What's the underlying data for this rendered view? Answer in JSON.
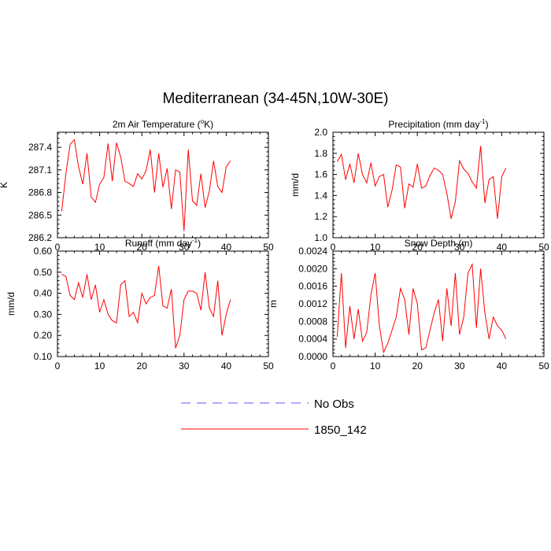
{
  "figure": {
    "title": "Mediterranean (34-45N,10W-30E)"
  },
  "chart_data": [
    {
      "type": "line",
      "title": "2m Air Temperature (°K)",
      "title_parts": {
        "pre": "2m Air Temperature (",
        "sup": "o",
        "post": "K)"
      },
      "xlabel": "",
      "ylabel": "K",
      "xlim": [
        0,
        50
      ],
      "ylim": [
        286.2,
        287.6
      ],
      "xticks": [
        0,
        10,
        20,
        30,
        40,
        50
      ],
      "yticks": [
        286.2,
        286.5,
        286.8,
        287.1,
        287.4
      ],
      "ytick_labels": [
        "286.2",
        "286.5",
        "286.8",
        "287.1",
        "287.4"
      ],
      "series": [
        {
          "name": "1850_142",
          "color": "#ff0000",
          "x": [
            1,
            2,
            3,
            4,
            5,
            6,
            7,
            8,
            9,
            10,
            11,
            12,
            13,
            14,
            15,
            16,
            17,
            18,
            19,
            20,
            21,
            22,
            23,
            24,
            25,
            26,
            27,
            28,
            29,
            30,
            31,
            32,
            33,
            34,
            35,
            36,
            37,
            38,
            39,
            40,
            41
          ],
          "values": [
            286.55,
            287.05,
            287.44,
            287.5,
            287.14,
            286.91,
            287.32,
            286.74,
            286.67,
            286.91,
            287,
            287.45,
            286.95,
            287.46,
            287.27,
            286.95,
            286.92,
            286.88,
            287.05,
            286.98,
            287.09,
            287.37,
            286.8,
            287.32,
            286.87,
            287.12,
            286.58,
            287.1,
            287.07,
            286.29,
            287.37,
            286.69,
            286.63,
            287.05,
            286.6,
            286.82,
            287.22,
            286.88,
            286.8,
            287.14,
            287.22
          ]
        }
      ]
    },
    {
      "type": "line",
      "title": "Precipitation (mm day⁻¹)",
      "title_parts": {
        "pre": "Precipitation (mm day",
        "sup": "-1",
        "post": ")"
      },
      "xlabel": "",
      "ylabel": "mm/d",
      "xlim": [
        0,
        50
      ],
      "ylim": [
        1.0,
        2.0
      ],
      "xticks": [
        0,
        10,
        20,
        30,
        40,
        50
      ],
      "yticks": [
        1.0,
        1.2,
        1.4,
        1.6,
        1.8,
        2.0
      ],
      "ytick_labels": [
        "1.0",
        "1.2",
        "1.4",
        "1.6",
        "1.8",
        "2.0"
      ],
      "series": [
        {
          "name": "1850_142",
          "color": "#ff0000",
          "x": [
            1,
            2,
            3,
            4,
            5,
            6,
            7,
            8,
            9,
            10,
            11,
            12,
            13,
            14,
            15,
            16,
            17,
            18,
            19,
            20,
            21,
            22,
            23,
            24,
            25,
            26,
            27,
            28,
            29,
            30,
            31,
            32,
            33,
            34,
            35,
            36,
            37,
            38,
            39,
            40,
            41
          ],
          "values": [
            1.72,
            1.79,
            1.55,
            1.7,
            1.52,
            1.8,
            1.6,
            1.52,
            1.71,
            1.49,
            1.58,
            1.6,
            1.29,
            1.45,
            1.69,
            1.67,
            1.28,
            1.51,
            1.48,
            1.7,
            1.47,
            1.49,
            1.59,
            1.66,
            1.64,
            1.6,
            1.42,
            1.18,
            1.34,
            1.73,
            1.65,
            1.61,
            1.53,
            1.47,
            1.87,
            1.33,
            1.55,
            1.58,
            1.18,
            1.58,
            1.66
          ]
        }
      ]
    },
    {
      "type": "line",
      "title": "Runoff (mm day⁻¹)",
      "title_parts": {
        "pre": "Runoff (mm day",
        "sup": "-1",
        "post": ")"
      },
      "xlabel": "",
      "ylabel": "mm/d",
      "xlim": [
        0,
        50
      ],
      "ylim": [
        0.1,
        0.6
      ],
      "xticks": [
        0,
        10,
        20,
        30,
        40,
        50
      ],
      "yticks": [
        0.1,
        0.2,
        0.3,
        0.4,
        0.5,
        0.6
      ],
      "ytick_labels": [
        "0.10",
        "0.20",
        "0.30",
        "0.40",
        "0.50",
        "0.60"
      ],
      "series": [
        {
          "name": "1850_142",
          "color": "#ff0000",
          "x": [
            1,
            2,
            3,
            4,
            5,
            6,
            7,
            8,
            9,
            10,
            11,
            12,
            13,
            14,
            15,
            16,
            17,
            18,
            19,
            20,
            21,
            22,
            23,
            24,
            25,
            26,
            27,
            28,
            29,
            30,
            31,
            32,
            33,
            34,
            35,
            36,
            37,
            38,
            39,
            40,
            41
          ],
          "values": [
            0.49,
            0.48,
            0.39,
            0.37,
            0.45,
            0.38,
            0.49,
            0.37,
            0.44,
            0.31,
            0.37,
            0.3,
            0.27,
            0.26,
            0.44,
            0.46,
            0.29,
            0.31,
            0.26,
            0.4,
            0.35,
            0.38,
            0.39,
            0.53,
            0.34,
            0.33,
            0.42,
            0.14,
            0.2,
            0.37,
            0.41,
            0.41,
            0.4,
            0.32,
            0.5,
            0.33,
            0.29,
            0.46,
            0.2,
            0.3,
            0.37
          ]
        }
      ]
    },
    {
      "type": "line",
      "title": "Snow Depth (m)",
      "title_parts": {
        "pre": "Snow Depth (m)",
        "sup": "",
        "post": ""
      },
      "xlabel": "",
      "ylabel": "m",
      "xlim": [
        0,
        50
      ],
      "ylim": [
        0.0,
        0.0024
      ],
      "xticks": [
        0,
        10,
        20,
        30,
        40,
        50
      ],
      "yticks": [
        0.0,
        0.0004,
        0.0008,
        0.0012,
        0.0016,
        0.002,
        0.0024
      ],
      "ytick_labels": [
        "0.0000",
        "0.0004",
        "0.0008",
        "0.0012",
        "0.0016",
        "0.0020",
        "0.0024"
      ],
      "series": [
        {
          "name": "1850_142",
          "color": "#ff0000",
          "x": [
            1,
            2,
            3,
            4,
            5,
            6,
            7,
            8,
            9,
            10,
            11,
            12,
            13,
            14,
            15,
            16,
            17,
            18,
            19,
            20,
            21,
            22,
            23,
            24,
            25,
            26,
            27,
            28,
            29,
            30,
            31,
            32,
            33,
            34,
            35,
            36,
            37,
            38,
            39,
            40,
            41
          ],
          "values": [
            0.00045,
            0.0019,
            0.0002,
            0.00115,
            0.0004,
            0.00108,
            0.00035,
            0.00055,
            0.0014,
            0.0019,
            0.0007,
            0.0001,
            0.0003,
            0.0006,
            0.0009,
            0.00155,
            0.0013,
            0.0005,
            0.00155,
            0.0012,
            0.00015,
            0.0002,
            0.0006,
            0.001,
            0.0013,
            0.00035,
            0.00155,
            0.0007,
            0.0019,
            0.0005,
            0.0009,
            0.0019,
            0.0021,
            0.00065,
            0.002,
            0.001,
            0.0004,
            0.0009,
            0.0007,
            0.0006,
            0.0004
          ]
        }
      ]
    }
  ],
  "legend": {
    "items": [
      {
        "label": "No Obs",
        "color": "#5a5aff",
        "dash": true
      },
      {
        "label": "1850_142",
        "color": "#ff0000",
        "dash": false
      }
    ]
  }
}
